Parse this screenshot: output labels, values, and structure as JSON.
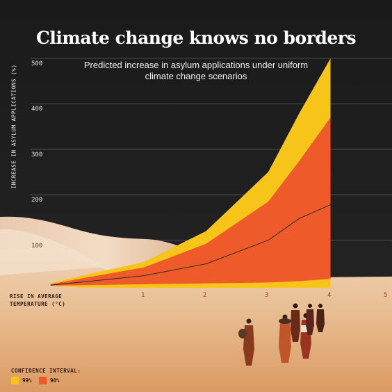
{
  "chart_data": {
    "type": "area",
    "title": "Climate change knows no borders",
    "subtitle": "Predicted increase in asylum applications under uniform climate change scenarios",
    "ylabel": "INCREASE IN ASYLUM APPLICATIONS (%)",
    "xlabel": "RISE IN AVERAGE TEMPERATURE (°C)",
    "yticks": [
      "100",
      "200",
      "300",
      "400",
      "500"
    ],
    "xticks": [
      "1",
      "2",
      "3",
      "4",
      "5"
    ],
    "ylim": [
      0,
      500
    ],
    "xlim": [
      0,
      5
    ],
    "grid": true,
    "x": [
      0.5,
      1,
      2,
      3,
      4,
      4.5,
      5
    ],
    "series": [
      {
        "name": "99%",
        "low": [
          0,
          -4,
          -5,
          -5,
          -5,
          -5,
          -5
        ],
        "high": [
          5,
          22,
          52,
          120,
          250,
          380,
          500
        ]
      },
      {
        "name": "90%",
        "low": [
          0,
          1,
          3,
          5,
          7,
          10,
          15
        ],
        "high": [
          3,
          16,
          40,
          92,
          185,
          275,
          370
        ]
      }
    ],
    "central": [
      1,
      8,
      22,
      48,
      100,
      148,
      178
    ],
    "legend": {
      "title": "CONFIDENCE INTERVAL:",
      "position": "bottom-left"
    },
    "colors": {
      "ci99": "#f7c41a",
      "ci90": "#ef5a2b",
      "line": "#2a2a2a",
      "grid": "#5a5a5a"
    }
  }
}
